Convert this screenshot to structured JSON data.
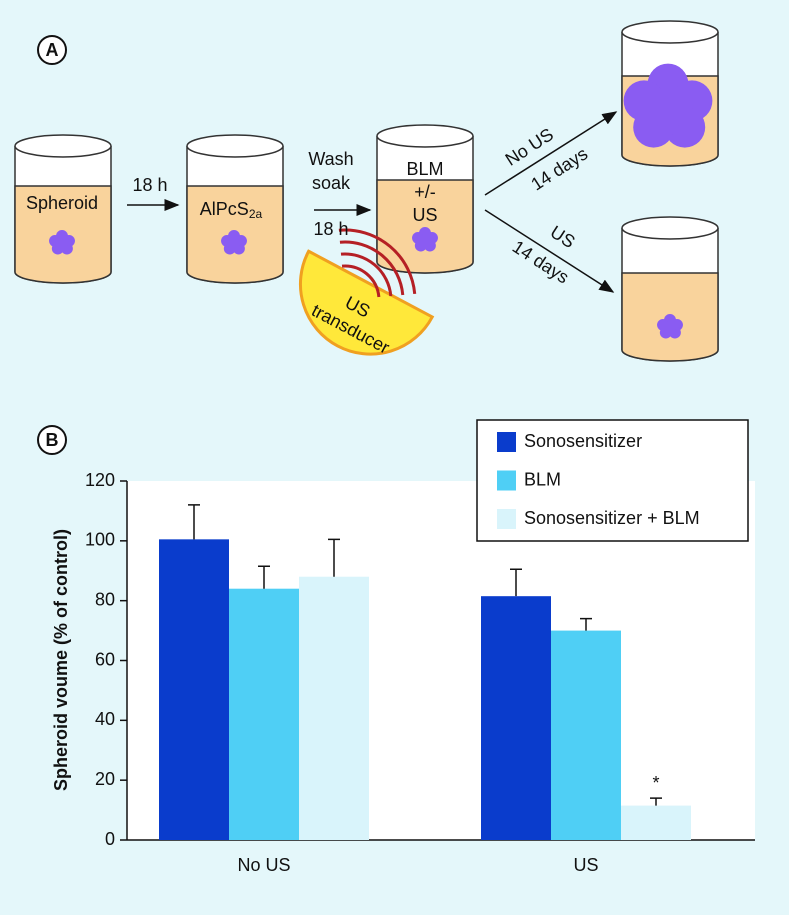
{
  "panel_a": {
    "label": "A",
    "spheroid": "Spheroid",
    "step1": "18 h",
    "sensitizer": {
      "text": "AlPcS",
      "subscript": "2a"
    },
    "wash": [
      "Wash",
      "soak",
      "18 h"
    ],
    "beaker3": [
      "BLM",
      "+/-",
      "US"
    ],
    "transducer": [
      "US",
      "transducer"
    ],
    "branch_no_us": [
      "No US",
      "14 days"
    ],
    "branch_us": [
      "US",
      "14 days"
    ]
  },
  "panel_b": {
    "label": "B"
  },
  "chart_data": {
    "type": "bar",
    "ylabel": "Spheroid voume (% of control)",
    "categories": [
      "No US",
      "US"
    ],
    "series": [
      {
        "name": "Sonosensitizer",
        "color": "#0a3ccc",
        "values": [
          100.5,
          81.5
        ],
        "errors": [
          11.5,
          9
        ]
      },
      {
        "name": "BLM",
        "color": "#4fcff5",
        "values": [
          84,
          70
        ],
        "errors": [
          7.5,
          4
        ]
      },
      {
        "name": "Sonosensitizer + BLM",
        "color": "#d9f4fb",
        "values": [
          88,
          11.5
        ],
        "errors": [
          12.5,
          2.5
        ]
      }
    ],
    "annotation": "*",
    "ylim": [
      0,
      120
    ],
    "yticks": [
      0,
      20,
      40,
      60,
      80,
      100,
      120
    ]
  }
}
